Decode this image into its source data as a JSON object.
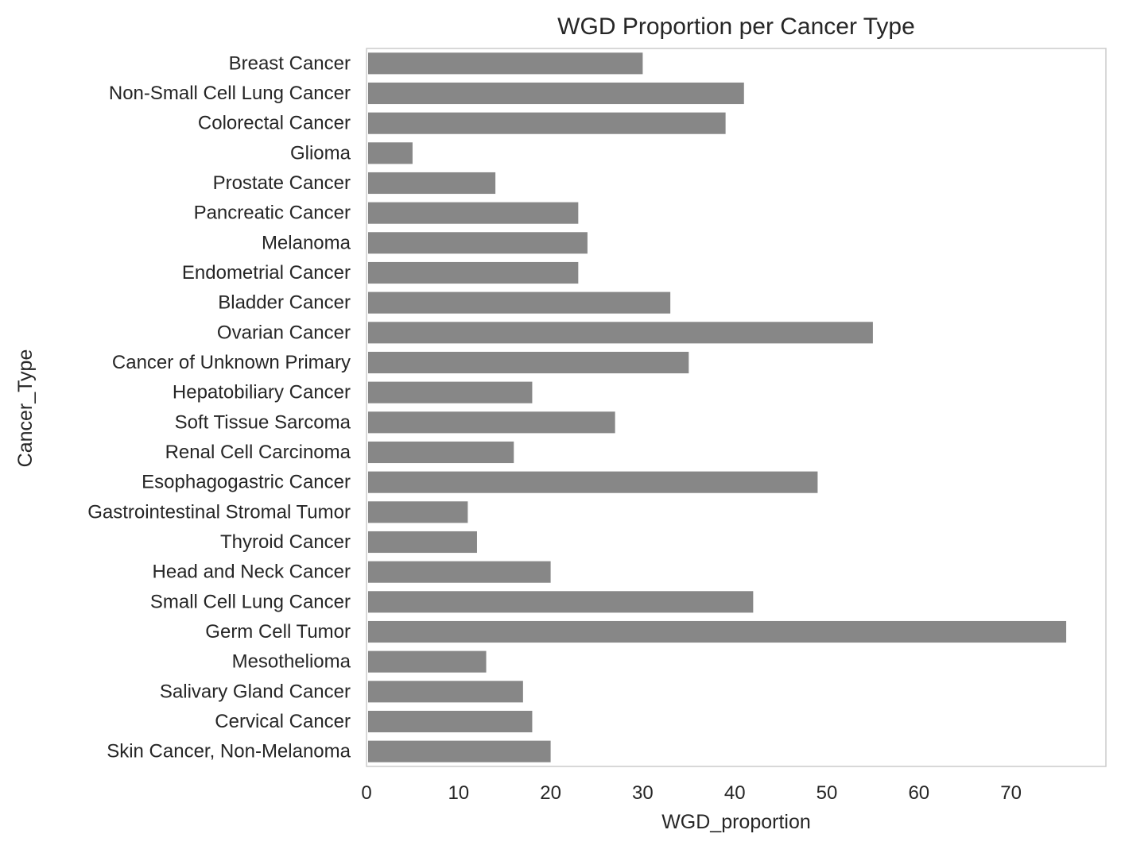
{
  "chart_data": {
    "type": "bar",
    "orientation": "horizontal",
    "title": "WGD Proportion per Cancer Type",
    "xlabel": "WGD_proportion",
    "ylabel": "Cancer_Type",
    "xlim": [
      0,
      80
    ],
    "xticks": [
      0,
      10,
      20,
      30,
      40,
      50,
      60,
      70
    ],
    "grid": false,
    "bar_color": "#878787",
    "categories": [
      "Breast Cancer",
      "Non-Small Cell Lung Cancer",
      "Colorectal Cancer",
      "Glioma",
      "Prostate Cancer",
      "Pancreatic Cancer",
      "Melanoma",
      "Endometrial Cancer",
      "Bladder Cancer",
      "Ovarian Cancer",
      "Cancer of Unknown Primary",
      "Hepatobiliary Cancer",
      "Soft Tissue Sarcoma",
      "Renal Cell Carcinoma",
      "Esophagogastric Cancer",
      "Gastrointestinal Stromal Tumor",
      "Thyroid Cancer",
      "Head and Neck Cancer",
      "Small Cell Lung Cancer",
      "Germ Cell Tumor",
      "Mesothelioma",
      "Salivary Gland Cancer",
      "Cervical Cancer",
      "Skin Cancer, Non-Melanoma"
    ],
    "values": [
      30,
      41,
      39,
      5,
      14,
      23,
      24,
      23,
      33,
      55,
      35,
      18,
      27,
      16,
      49,
      11,
      12,
      20,
      42,
      76,
      13,
      17,
      18,
      20
    ]
  }
}
